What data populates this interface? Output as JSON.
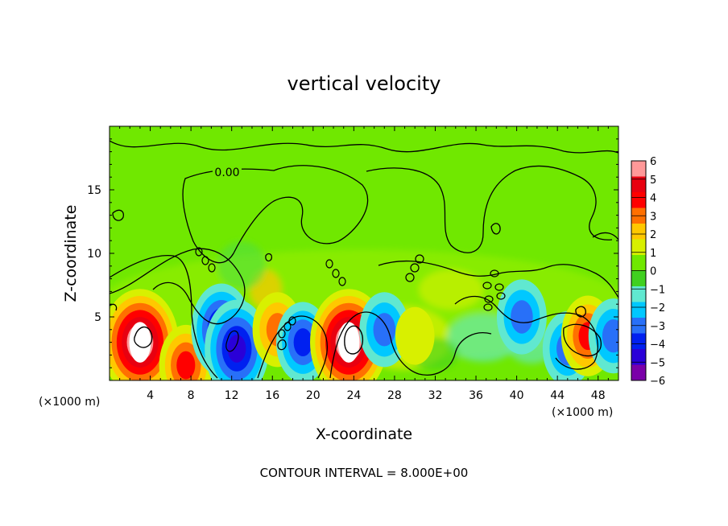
{
  "chart_data": {
    "type": "heatmap",
    "title": "vertical velocity",
    "xlabel": "X-coordinate",
    "ylabel": "Z-coordinate",
    "x_unit": "(×1000 m)",
    "z_unit": "(×1000 m)",
    "xlim": [
      0,
      50
    ],
    "ylim": [
      0,
      20
    ],
    "xticks": [
      "4",
      "8",
      "12",
      "16",
      "20",
      "24",
      "28",
      "32",
      "36",
      "40",
      "44",
      "48"
    ],
    "yticks": [
      "5",
      "10",
      "15"
    ],
    "colorbar": {
      "range": [
        -6,
        6
      ],
      "ticks": [
        "6",
        "5",
        "4",
        "3",
        "2",
        "1",
        "0",
        "−1",
        "−2",
        "−3",
        "−4",
        "−5",
        "−6"
      ],
      "colors": [
        "#7a00a8",
        "#2a00d8",
        "#0020f0",
        "#2870f8",
        "#00c8ff",
        "#60e8d0",
        "#40d020",
        "#70e800",
        "#d8f000",
        "#ffc800",
        "#ff7000",
        "#ff0000",
        "#e80010",
        "#ff9898"
      ]
    },
    "contour_label": "0.00",
    "footer": "CONTOUR INTERVAL = 8.000E+00",
    "features": [
      {
        "x": 3,
        "z": 3,
        "w": 7,
        "type": "updraft"
      },
      {
        "x": 7.5,
        "z": 1.2,
        "w": 3.5,
        "type": "updraft"
      },
      {
        "x": 11,
        "z": 4,
        "w": -4.5,
        "type": "downdraft"
      },
      {
        "x": 12.5,
        "z": 2.5,
        "w": -5,
        "type": "downdraft"
      },
      {
        "x": 16.5,
        "z": 4,
        "w": 3,
        "type": "updraft"
      },
      {
        "x": 19,
        "z": 3,
        "w": -3.5,
        "type": "downdraft"
      },
      {
        "x": 23.5,
        "z": 3,
        "w": 7,
        "type": "updraft"
      },
      {
        "x": 27,
        "z": 4,
        "w": -3,
        "type": "downdraft"
      },
      {
        "x": 30,
        "z": 3.5,
        "w": 1.5,
        "type": "updraft"
      },
      {
        "x": 40.5,
        "z": 5,
        "w": -3,
        "type": "downdraft"
      },
      {
        "x": 45,
        "z": 2.5,
        "w": -3,
        "type": "downdraft"
      },
      {
        "x": 47,
        "z": 3.5,
        "w": 3.5,
        "type": "updraft"
      },
      {
        "x": 49.5,
        "z": 3.5,
        "w": -3,
        "type": "downdraft"
      }
    ]
  }
}
